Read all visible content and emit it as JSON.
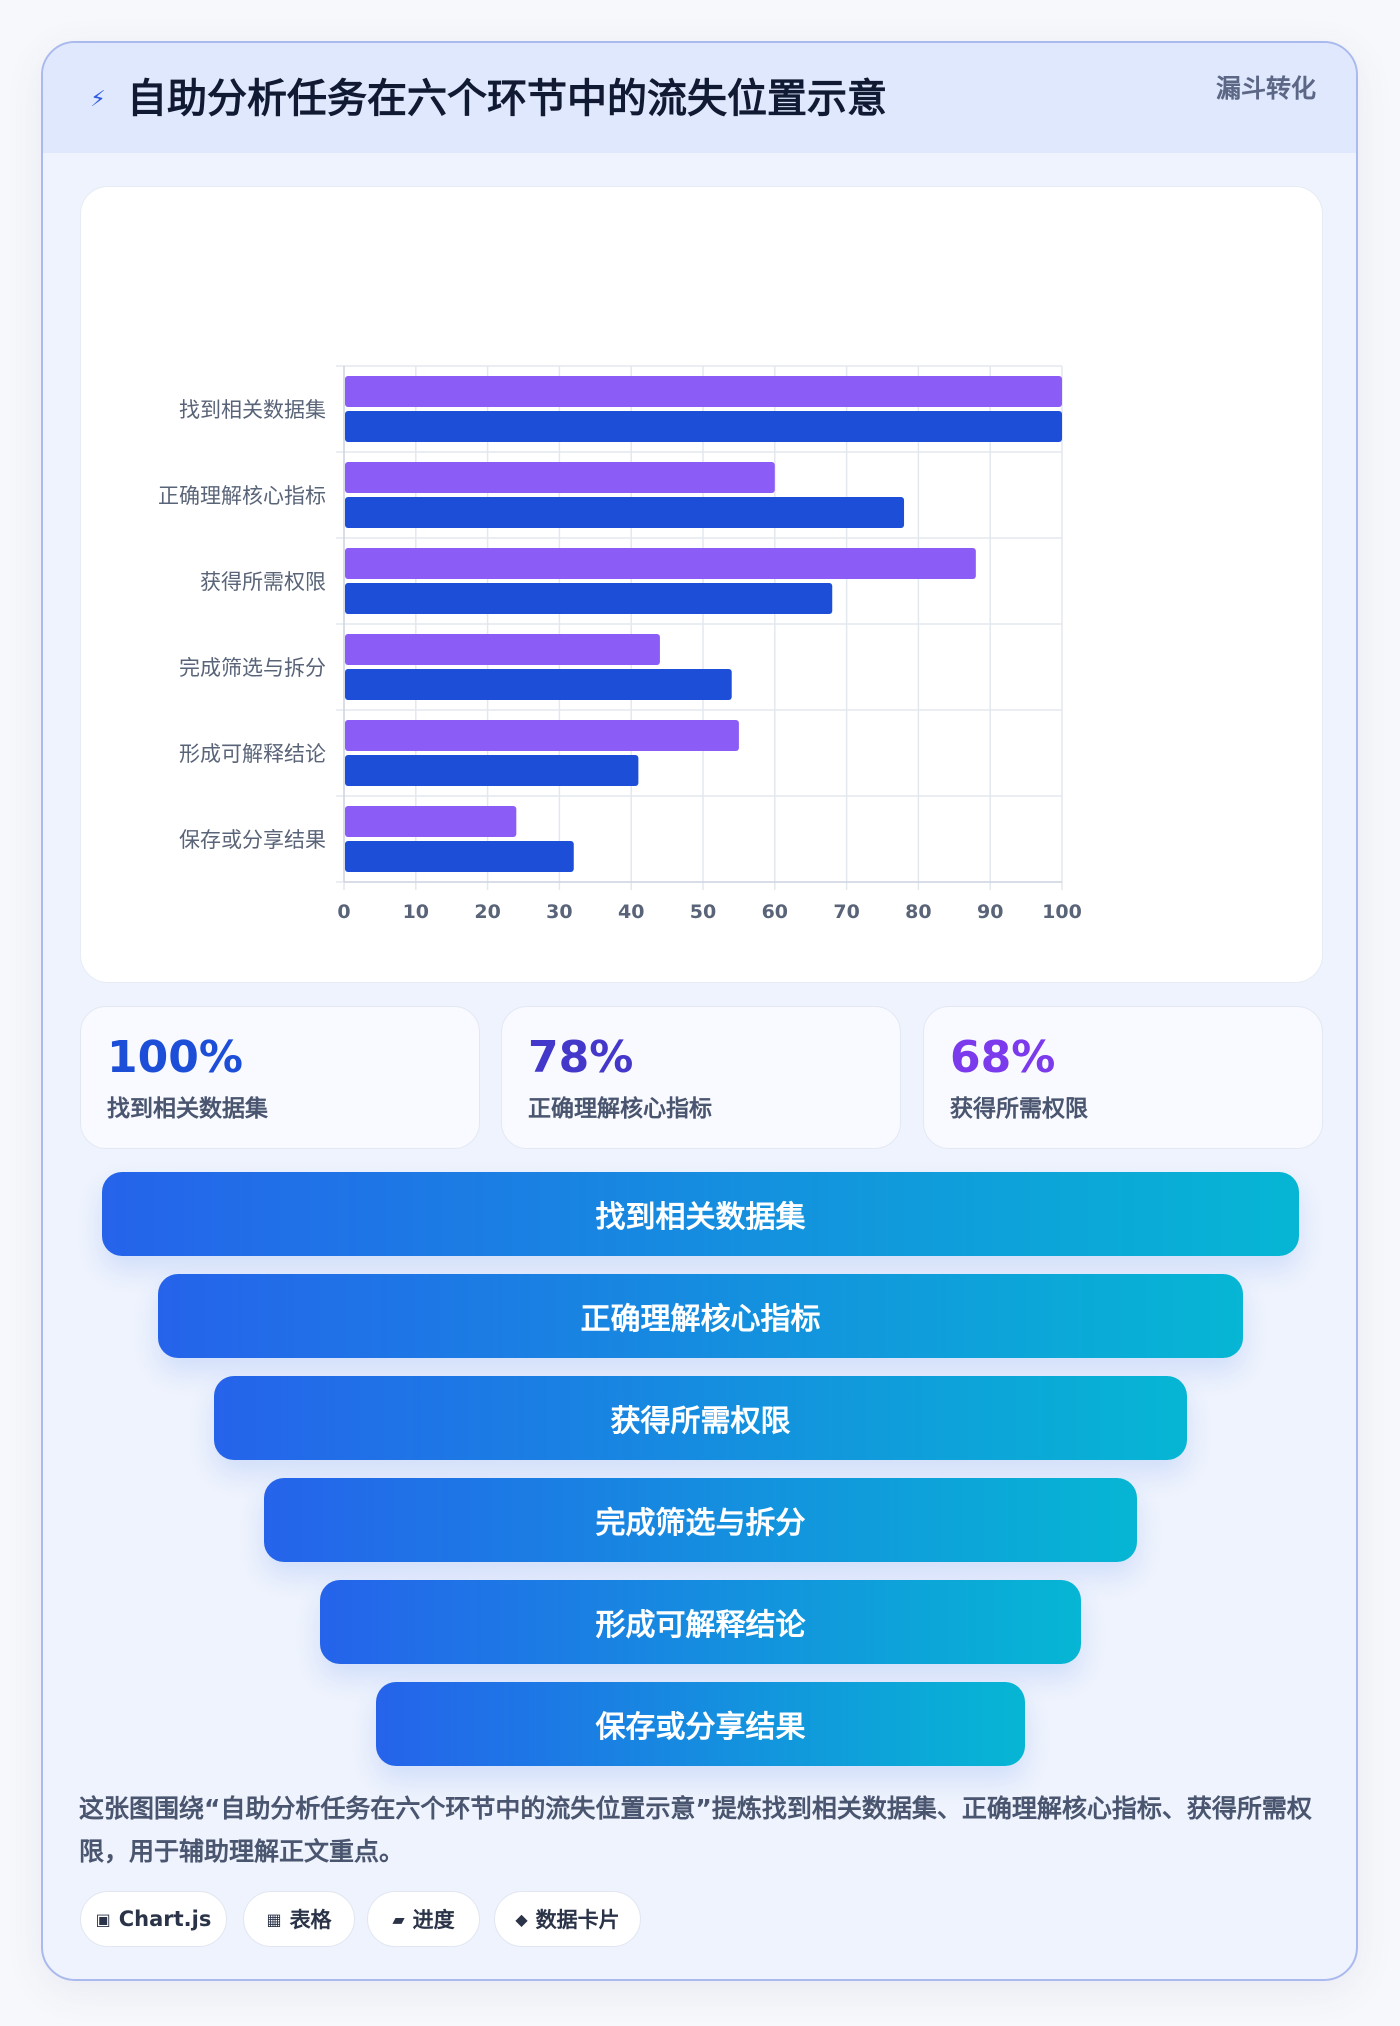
{
  "header": {
    "icon": "bolt-icon",
    "title": "自助分析任务在六个环节中的流失位置示意",
    "tag": "漏斗转化"
  },
  "chart_data": {
    "type": "bar",
    "orientation": "horizontal",
    "categories": [
      "找到相关数据集",
      "正确理解核心指标",
      "获得所需权限",
      "完成筛选与拆分",
      "形成可解释结论",
      "保存或分享结果"
    ],
    "series": [
      {
        "values": [
          100,
          60,
          88,
          44,
          55,
          24
        ],
        "color": "#8b5cf6"
      },
      {
        "values": [
          100,
          78,
          68,
          54,
          41,
          32
        ],
        "color": "#1d4ed8"
      }
    ],
    "xlim": [
      0,
      100
    ],
    "xticks": [
      0,
      10,
      20,
      30,
      40,
      50,
      60,
      70,
      80,
      90,
      100
    ],
    "grid": true,
    "legend": "none"
  },
  "stats": [
    {
      "value": "100%",
      "label": "找到相关数据集",
      "color": "#1d4ed8"
    },
    {
      "value": "78%",
      "label": "正确理解核心指标",
      "color": "#4338ca"
    },
    {
      "value": "68%",
      "label": "获得所需权限",
      "color": "#7c3aed"
    }
  ],
  "funnel": [
    "找到相关数据集",
    "正确理解核心指标",
    "获得所需权限",
    "完成筛选与拆分",
    "形成可解释结论",
    "保存或分享结果"
  ],
  "summary": "这张图围绕“自助分析任务在六个环节中的流失位置示意”提炼找到相关数据集、正确理解核心指标、获得所需权限，用于辅助理解正文重点。",
  "chips": [
    {
      "icon": "chart-icon",
      "glyph": "▣",
      "label": "Chart.js"
    },
    {
      "icon": "table-icon",
      "glyph": "▦",
      "label": "表格"
    },
    {
      "icon": "progress-icon",
      "glyph": "▰",
      "label": "进度"
    },
    {
      "icon": "data-card-icon",
      "glyph": "◆",
      "label": "数据卡片"
    }
  ]
}
